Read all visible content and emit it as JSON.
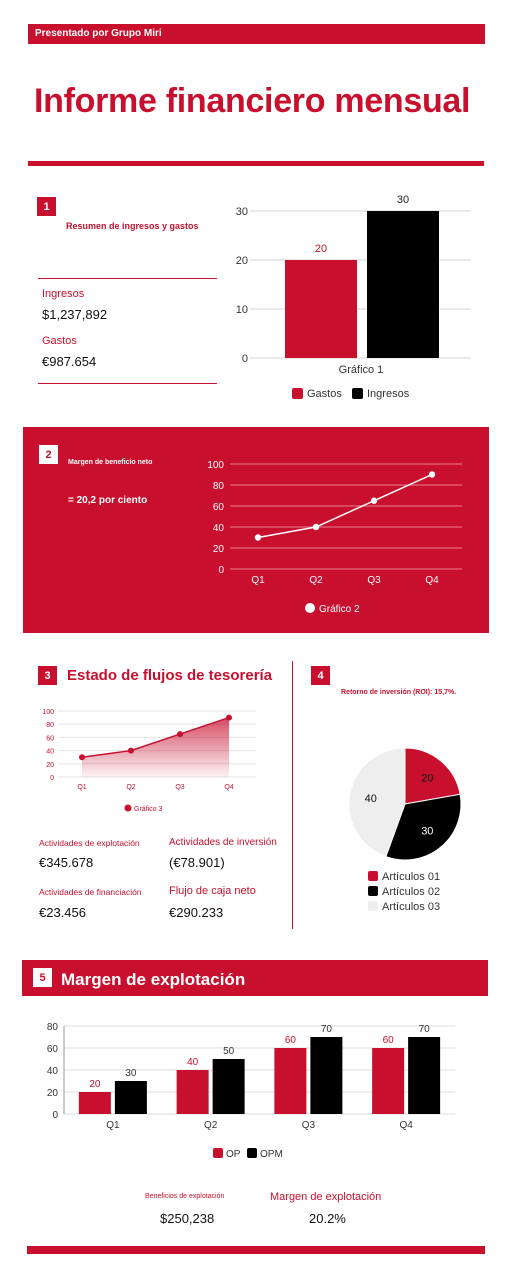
{
  "header": {
    "presenter": "Presentado por Grupo Miri",
    "title": "Informe financiero mensual"
  },
  "section1": {
    "number": "1",
    "title": "Resumen de ingresos y gastos",
    "income_label": "Ingresos",
    "income_value": "$1,237,892",
    "expense_label": "Gastos",
    "expense_value": "€987.654"
  },
  "section2": {
    "number": "2",
    "title": "Margen de beneficio neto",
    "value": "= 20,2 por ciento"
  },
  "section3": {
    "number": "3",
    "title": "Estado de flujos de tesorería",
    "items": [
      {
        "label": "Actividades de explotación",
        "value": "€345.678"
      },
      {
        "label": "Actividades de inversión",
        "value": "(€78.901)"
      },
      {
        "label": "Actividades de financiación",
        "value": "€23.456"
      },
      {
        "label": "Flujo de caja neto",
        "value": "€290.233"
      }
    ]
  },
  "section4": {
    "number": "4",
    "title": "Retorno de inversión (ROI): 15,7%."
  },
  "section5": {
    "number": "5",
    "title": "Margen de explotación",
    "stat1_label": "Beneficios de explotación",
    "stat1_value": "$250,238",
    "stat2_label": "Margen de explotación",
    "stat2_value": "20.2%"
  },
  "colors": {
    "accent": "#c8102e",
    "black": "#000000",
    "light": "#eeeeee"
  },
  "chart_data": [
    {
      "id": "chart1",
      "type": "bar",
      "title": "Gráfico 1",
      "categories": [
        "Gastos",
        "Ingresos"
      ],
      "values": [
        20,
        30
      ],
      "colors": [
        "#c8102e",
        "#000000"
      ],
      "ylim": [
        0,
        30
      ],
      "yticks": [
        0,
        10,
        20,
        30
      ],
      "legend": "bottom"
    },
    {
      "id": "chart2",
      "type": "line",
      "series": [
        {
          "name": "Gráfico 2",
          "values": [
            30,
            40,
            65,
            90
          ]
        }
      ],
      "categories": [
        "Q1",
        "Q2",
        "Q3",
        "Q4"
      ],
      "ylim": [
        0,
        100
      ],
      "yticks": [
        0,
        20,
        40,
        60,
        80,
        100
      ],
      "legend": "bottom"
    },
    {
      "id": "chart3",
      "type": "area",
      "series": [
        {
          "name": "Gráfico 3",
          "values": [
            30,
            40,
            65,
            90
          ]
        }
      ],
      "categories": [
        "Q1",
        "Q2",
        "Q3",
        "Q4"
      ],
      "ylim": [
        0,
        100
      ],
      "yticks": [
        0,
        20,
        40,
        60,
        80,
        100
      ],
      "legend": "bottom"
    },
    {
      "id": "chart4",
      "type": "pie",
      "labels": [
        "Artículos 01",
        "Artículos 02",
        "Artículos 03"
      ],
      "values": [
        20,
        30,
        40
      ],
      "colors": [
        "#c8102e",
        "#000000",
        "#eeeeee"
      ],
      "legend": "bottom"
    },
    {
      "id": "chart5",
      "type": "bar",
      "categories": [
        "Q1",
        "Q2",
        "Q3",
        "Q4"
      ],
      "series": [
        {
          "name": "OP",
          "values": [
            20,
            40,
            60,
            60
          ],
          "color": "#c8102e"
        },
        {
          "name": "OPM",
          "values": [
            30,
            50,
            70,
            70
          ],
          "color": "#000000"
        }
      ],
      "ylim": [
        0,
        80
      ],
      "yticks": [
        0,
        20,
        40,
        60,
        80
      ],
      "legend": "bottom"
    }
  ]
}
